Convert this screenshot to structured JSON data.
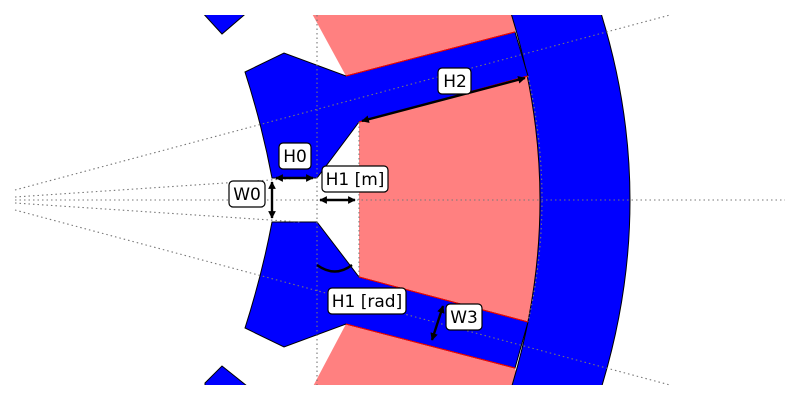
{
  "colors": {
    "lamination": "#0000ff",
    "winding": "#ff8080",
    "outline": "#000000",
    "winding_edge": "#ff0000",
    "guide": "#777777",
    "label_bg": "#ffffff"
  },
  "labels": {
    "h0": "H0",
    "w0": "W0",
    "h1_m": "H1 [m]",
    "h1_rad": "H1 [rad]",
    "h2": "H2",
    "w3": "W3"
  }
}
